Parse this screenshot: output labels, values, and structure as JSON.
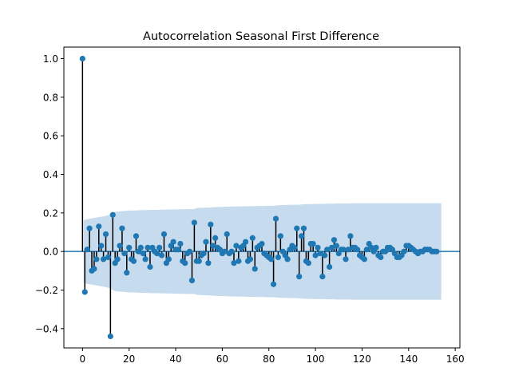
{
  "chart_data": {
    "type": "stem",
    "title": "Autocorrelation Seasonal First Difference",
    "xlabel": "",
    "ylabel": "",
    "xlim": [
      -8,
      162
    ],
    "ylim": [
      -0.5,
      1.06
    ],
    "x_ticks": [
      0,
      20,
      40,
      60,
      80,
      100,
      120,
      140,
      160
    ],
    "y_ticks": [
      -0.4,
      -0.2,
      0.0,
      0.2,
      0.4,
      0.6,
      0.8,
      1.0
    ],
    "x_tick_labels": [
      "0",
      "20",
      "40",
      "60",
      "80",
      "100",
      "120",
      "140",
      "160"
    ],
    "y_tick_labels": [
      "−0.4",
      "−0.2",
      "0.0",
      "0.2",
      "0.4",
      "0.6",
      "0.8",
      "1.0"
    ],
    "grid": false,
    "colors": {
      "marker": "#1f77b4",
      "stem": "#000000",
      "band": "#c6dbed",
      "zero_line": "#1f77b4"
    },
    "acf": [
      1.0,
      -0.21,
      0.01,
      0.12,
      -0.1,
      -0.09,
      -0.04,
      0.13,
      0.03,
      -0.04,
      0.09,
      -0.03,
      -0.44,
      0.19,
      -0.06,
      -0.04,
      0.03,
      0.12,
      -0.01,
      -0.11,
      0.02,
      -0.04,
      -0.05,
      0.08,
      0.0,
      0.02,
      -0.01,
      -0.04,
      0.02,
      -0.08,
      0.02,
      0.0,
      -0.01,
      0.02,
      -0.02,
      0.09,
      -0.06,
      -0.04,
      0.03,
      0.05,
      0.01,
      0.01,
      0.04,
      -0.05,
      -0.06,
      -0.01,
      0.0,
      -0.15,
      0.15,
      -0.05,
      -0.05,
      -0.02,
      -0.01,
      0.05,
      -0.06,
      0.14,
      0.03,
      0.07,
      0.02,
      0.01,
      -0.01,
      0.0,
      0.09,
      -0.01,
      0.0,
      -0.06,
      0.03,
      -0.05,
      0.02,
      0.03,
      0.05,
      -0.05,
      -0.04,
      0.07,
      -0.09,
      0.02,
      0.03,
      0.04,
      -0.01,
      -0.02,
      -0.03,
      -0.04,
      -0.17,
      0.17,
      -0.03,
      0.08,
      0.0,
      -0.02,
      -0.04,
      0.01,
      0.03,
      0.02,
      0.12,
      -0.13,
      0.08,
      0.12,
      -0.05,
      -0.06,
      0.04,
      0.04,
      -0.02,
      0.02,
      -0.01,
      -0.13,
      -0.02,
      0.01,
      -0.08,
      0.02,
      0.06,
      0.03,
      -0.01,
      0.01,
      0.01,
      -0.04,
      0.01,
      0.08,
      0.02,
      0.02,
      0.01,
      -0.02,
      -0.03,
      -0.04,
      0.01,
      0.04,
      0.02,
      0.0,
      0.02,
      -0.02,
      -0.03,
      0.0,
      0.0,
      0.02,
      0.02,
      0.01,
      -0.01,
      -0.03,
      -0.03,
      -0.02,
      0.0,
      0.03,
      0.03,
      0.02,
      0.01,
      0.0,
      -0.01,
      0.0,
      0.0,
      0.01,
      0.01,
      0.01,
      0.0,
      0.0,
      0.0
    ],
    "conf_band_upper": [
      0.16,
      0.165,
      0.168,
      0.17,
      0.172,
      0.174,
      0.176,
      0.178,
      0.18,
      0.182,
      0.185,
      0.188,
      0.19,
      0.2,
      0.205,
      0.207,
      0.208,
      0.209,
      0.21,
      0.211,
      0.212,
      0.212,
      0.213,
      0.213,
      0.214,
      0.214,
      0.215,
      0.215,
      0.215,
      0.216,
      0.216,
      0.216,
      0.216,
      0.217,
      0.217,
      0.217,
      0.217,
      0.218,
      0.218,
      0.218,
      0.218,
      0.219,
      0.219,
      0.219,
      0.219,
      0.22,
      0.22,
      0.22,
      0.22,
      0.225,
      0.226,
      0.226,
      0.227,
      0.227,
      0.228,
      0.228,
      0.23,
      0.23,
      0.231,
      0.231,
      0.231,
      0.232,
      0.232,
      0.233,
      0.233,
      0.233,
      0.233,
      0.234,
      0.234,
      0.234,
      0.234,
      0.235,
      0.235,
      0.235,
      0.235,
      0.236,
      0.236,
      0.236,
      0.236,
      0.237,
      0.237,
      0.237,
      0.237,
      0.238,
      0.24,
      0.24,
      0.241,
      0.241,
      0.241,
      0.242,
      0.242,
      0.242,
      0.242,
      0.243,
      0.244,
      0.245,
      0.246,
      0.246,
      0.246,
      0.246,
      0.247,
      0.247,
      0.247,
      0.247,
      0.247,
      0.248,
      0.248,
      0.248,
      0.248,
      0.249,
      0.249,
      0.249,
      0.249,
      0.249,
      0.249,
      0.249,
      0.25,
      0.25,
      0.25,
      0.25,
      0.25,
      0.25,
      0.25,
      0.25,
      0.25,
      0.25,
      0.25,
      0.25,
      0.25,
      0.25,
      0.25,
      0.25,
      0.25,
      0.25,
      0.25,
      0.25,
      0.25,
      0.25,
      0.25,
      0.25,
      0.25,
      0.25,
      0.25,
      0.25,
      0.25,
      0.25,
      0.25,
      0.25,
      0.25,
      0.25,
      0.25,
      0.25,
      0.25,
      0.25,
      0.25
    ]
  }
}
